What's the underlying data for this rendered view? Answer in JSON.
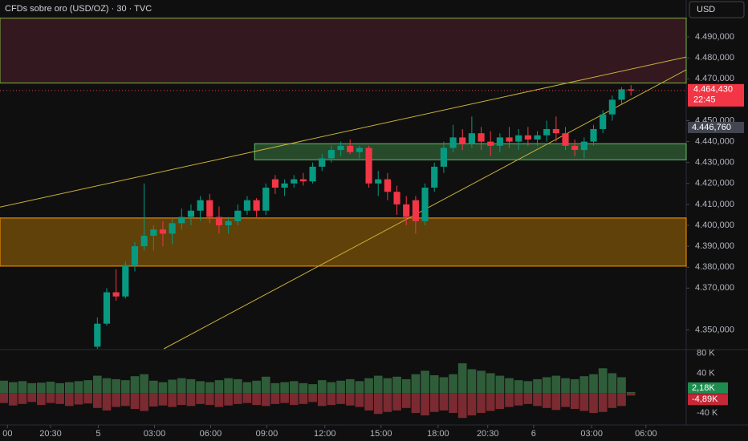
{
  "header": {
    "title": "CFDs sobre oro (USD/OZ) · 30 · TVC",
    "currency": "USD"
  },
  "chart_data": {
    "type": "candlestick",
    "xlim": [
      -0.4,
      72.9
    ],
    "xticks": [
      {
        "value": 0.4,
        "label": "00"
      },
      {
        "value": 5,
        "label": "20:30"
      },
      {
        "value": 10.1,
        "label": "5"
      },
      {
        "value": 16.1,
        "label": "03:00"
      },
      {
        "value": 22.1,
        "label": "06:00"
      },
      {
        "value": 28.1,
        "label": "09:00"
      },
      {
        "value": 34.3,
        "label": "12:00"
      },
      {
        "value": 40.3,
        "label": "15:00"
      },
      {
        "value": 46.4,
        "label": "18:00"
      },
      {
        "value": 51.7,
        "label": "20:30"
      },
      {
        "value": 56.6,
        "label": "6"
      },
      {
        "value": 62.8,
        "label": "03:00"
      },
      {
        "value": 68.6,
        "label": "06:00"
      }
    ],
    "ylim": [
      4341,
      4500
    ],
    "yticks": [
      {
        "value": 4490,
        "label": "4.490,000"
      },
      {
        "value": 4480,
        "label": "4.480,000"
      },
      {
        "value": 4470,
        "label": "4.470,000"
      },
      {
        "value": 4450,
        "label": "4.450,000"
      },
      {
        "value": 4440,
        "label": "4.440,000"
      },
      {
        "value": 4430,
        "label": "4.430,000"
      },
      {
        "value": 4420,
        "label": "4.420,000"
      },
      {
        "value": 4410,
        "label": "4.410,000"
      },
      {
        "value": 4400,
        "label": "4.400,000"
      },
      {
        "value": 4390,
        "label": "4.390,000"
      },
      {
        "value": 4380,
        "label": "4.380,000"
      },
      {
        "value": 4370,
        "label": "4.370,000"
      },
      {
        "value": 4350,
        "label": "4.350,000"
      }
    ],
    "up_color": "#089981",
    "down_color": "#f23645",
    "open": [
      null,
      null,
      null,
      null,
      null,
      null,
      null,
      null,
      null,
      null,
      4342,
      4353,
      4368,
      4366,
      4381,
      4390,
      4395,
      4398,
      4396,
      4401,
      4404,
      4407,
      4412,
      4404,
      4400,
      4402,
      4407,
      4412,
      4407,
      4422,
      4418,
      4420,
      4422,
      4421,
      4428,
      4432,
      4436,
      4438,
      4435,
      4437,
      4420,
      4422,
      4416,
      4410,
      4412,
      4402,
      4418,
      4428,
      4437,
      4442,
      4439,
      4444,
      4440,
      4438,
      4442,
      4440,
      4443,
      4441,
      4443,
      4446,
      4444,
      4438,
      4436,
      4440,
      4446,
      4453,
      4460,
      4465
    ],
    "high": [
      null,
      null,
      null,
      null,
      null,
      null,
      null,
      null,
      null,
      null,
      4356,
      4370,
      4379,
      4383,
      4392,
      4420,
      4400,
      4402,
      4403,
      4408,
      4410,
      4414,
      4415,
      4409,
      4404,
      4410,
      4414,
      4413,
      4420,
      4424,
      4422,
      4424,
      4425,
      4430,
      4434,
      4438,
      4440,
      4441,
      4438,
      4438,
      4426,
      4425,
      4419,
      4414,
      4414,
      4420,
      4430,
      4440,
      4448,
      4446,
      4452,
      4447,
      4445,
      4444,
      4447,
      4446,
      4447,
      4445,
      4450,
      4452,
      4447,
      4441,
      4442,
      4448,
      4455,
      4462,
      4466,
      4467
    ],
    "low": [
      null,
      null,
      null,
      null,
      null,
      null,
      null,
      null,
      null,
      null,
      4341,
      4352,
      4364,
      4365,
      4378,
      4388,
      4388,
      4390,
      4391,
      4398,
      4400,
      4402,
      4401,
      4396,
      4396,
      4400,
      4405,
      4404,
      4405,
      4415,
      4414,
      4418,
      4419,
      4420,
      4426,
      4430,
      4433,
      4434,
      4432,
      4418,
      4414,
      4412,
      4405,
      4400,
      4396,
      4400,
      4416,
      4425,
      4435,
      4436,
      4437,
      4436,
      4433,
      4435,
      4437,
      4436,
      4438,
      4438,
      4440,
      4440,
      4436,
      4433,
      4432,
      4438,
      4444,
      4450,
      4458,
      4462
    ],
    "close": [
      null,
      null,
      null,
      null,
      null,
      null,
      null,
      null,
      null,
      null,
      4353,
      4368,
      4366,
      4381,
      4390,
      4395,
      4398,
      4396,
      4401,
      4404,
      4407,
      4412,
      4404,
      4400,
      4402,
      4407,
      4412,
      4407,
      4418,
      4418,
      4420,
      4422,
      4421,
      4428,
      4432,
      4436,
      4438,
      4435,
      4437,
      4420,
      4422,
      4416,
      4410,
      4404,
      4402,
      4418,
      4428,
      4437,
      4442,
      4439,
      4444,
      4440,
      4438,
      4442,
      4440,
      4443,
      4441,
      4443,
      4446,
      4444,
      4438,
      4436,
      4440,
      4446,
      4453,
      4460,
      4465,
      4464.43
    ],
    "last_price": {
      "value": 4464.43,
      "label": "4.464,430",
      "countdown": "22:45"
    },
    "level": {
      "value": 4446.76,
      "label": "4.446,760"
    },
    "zones": [
      {
        "low": 4468,
        "high": 4499,
        "fill": "#3a1a22",
        "stroke": "#7cb342"
      },
      {
        "low": 4380.5,
        "high": 4403.5,
        "fill": "#6e4a08",
        "stroke": "#ff9800"
      },
      {
        "low": 4431.3,
        "high": 4439,
        "from": 26.8,
        "fill": "#2b5530",
        "stroke": "#66bb6a"
      }
    ],
    "trendlines": [
      {
        "x": [
          -0.4,
          72.9
        ],
        "y": [
          4408.7,
          4480.4
        ],
        "color": "#c9b037"
      },
      {
        "x": [
          17.1,
          72.9
        ],
        "y": [
          4341,
          4474.3
        ],
        "color": "#c9b037"
      }
    ],
    "volume": {
      "ylim": [
        -61,
        86
      ],
      "yticks": [
        {
          "value": 80,
          "label": "80 K"
        },
        {
          "value": 40,
          "label": "40 K"
        },
        {
          "value": -40,
          "label": "-40 K"
        }
      ],
      "buy_color": "#2f5d3a",
      "sell_color": "#7a2a30",
      "buy": [
        25,
        22,
        24,
        20,
        21,
        23,
        20,
        22,
        24,
        26,
        35,
        30,
        28,
        26,
        34,
        38,
        25,
        22,
        27,
        30,
        28,
        24,
        22,
        26,
        30,
        28,
        22,
        25,
        33,
        20,
        22,
        24,
        20,
        18,
        26,
        22,
        25,
        28,
        24,
        30,
        35,
        30,
        33,
        28,
        38,
        45,
        36,
        32,
        38,
        60,
        48,
        45,
        40,
        35,
        30,
        26,
        24,
        28,
        32,
        35,
        30,
        28,
        34,
        38,
        50,
        40,
        32,
        2.18
      ],
      "sell": [
        -20,
        -25,
        -22,
        -18,
        -24,
        -20,
        -22,
        -26,
        -23,
        -21,
        -30,
        -35,
        -28,
        -26,
        -32,
        -36,
        -27,
        -25,
        -28,
        -24,
        -26,
        -22,
        -24,
        -28,
        -25,
        -22,
        -20,
        -24,
        -26,
        -22,
        -20,
        -24,
        -22,
        -18,
        -26,
        -24,
        -22,
        -25,
        -28,
        -35,
        -42,
        -38,
        -35,
        -30,
        -40,
        -45,
        -38,
        -35,
        -40,
        -50,
        -45,
        -40,
        -36,
        -32,
        -28,
        -25,
        -22,
        -26,
        -30,
        -34,
        -28,
        -32,
        -36,
        -40,
        -38,
        -30,
        -26,
        -4.89
      ],
      "last_buy": {
        "value": 2.18,
        "label": "2,18K"
      },
      "last_sell": {
        "value": -4.89,
        "label": "-4,89K"
      }
    }
  }
}
